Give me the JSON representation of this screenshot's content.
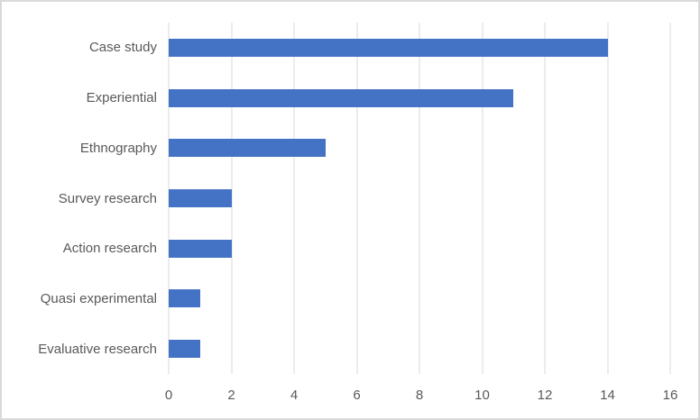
{
  "chart_data": {
    "type": "bar",
    "orientation": "horizontal",
    "title": "",
    "xlabel": "",
    "ylabel": "",
    "categories": [
      "Case study",
      "Experiential",
      "Ethnography",
      "Survey research",
      "Action research",
      "Quasi experimental",
      "Evaluative research"
    ],
    "values": [
      14,
      11,
      5,
      2,
      2,
      1,
      1
    ],
    "xlim": [
      0,
      16
    ],
    "tick_step": 2,
    "tick_labels": [
      "0",
      "2",
      "4",
      "6",
      "8",
      "10",
      "12",
      "14",
      "16"
    ],
    "grid": "vertical-only",
    "legend": "none"
  },
  "colors": {
    "bar": "#4472C4",
    "gridline": "#D9D9D9",
    "axis_text": "#595959",
    "frame_border": "#D9D9D9",
    "background": "#FFFFFF"
  }
}
